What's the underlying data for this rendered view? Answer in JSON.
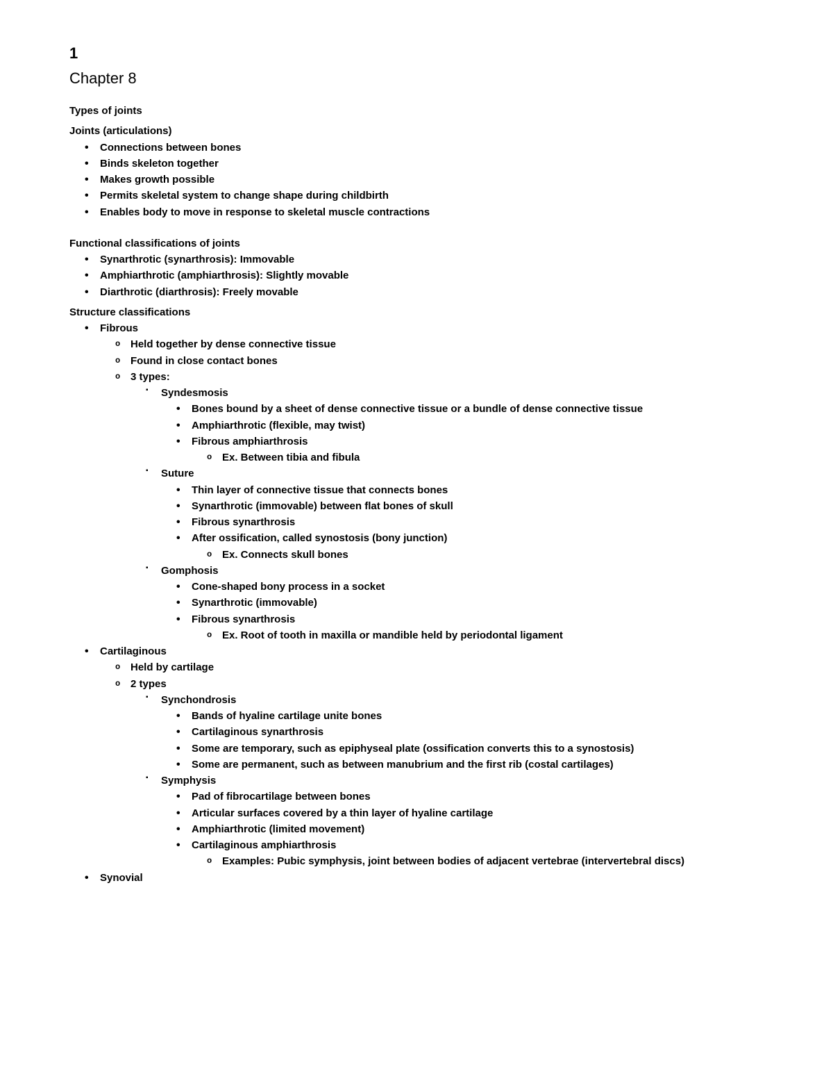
{
  "page_number": "1",
  "chapter_title": "Chapter 8",
  "h1": "Types of joints",
  "h2": "Joints (articulations)",
  "joints_items": [
    "Connections between bones",
    "Binds skeleton together",
    "Makes growth possible",
    "Permits skeletal system to change shape during childbirth",
    "Enables body to move in response to skeletal muscle contractions"
  ],
  "h3": "Functional classifications of joints",
  "functional_items": [
    "Synarthrotic (synarthrosis): Immovable",
    "Amphiarthrotic (amphiarthrosis): Slightly movable",
    "Diarthrotic (diarthrosis): Freely movable"
  ],
  "h4": "Structure classifications",
  "fibrous": {
    "title": "Fibrous",
    "sub": [
      "Held together by dense connective tissue",
      "Found in close contact bones",
      "3 types:"
    ],
    "types": {
      "syndesmosis": {
        "title": "Syndesmosis",
        "items": [
          "Bones bound by a sheet of dense connective tissue or a bundle of dense connective tissue",
          "Amphiarthrotic (flexible, may twist)",
          "Fibrous amphiarthrosis"
        ],
        "ex": "Ex. Between tibia and fibula"
      },
      "suture": {
        "title": "Suture",
        "items": [
          "Thin layer of connective tissue that connects bones",
          "Synarthrotic (immovable) between flat bones of skull",
          "Fibrous synarthrosis",
          "After ossification, called synostosis (bony junction)"
        ],
        "ex": "Ex. Connects skull bones"
      },
      "gomphosis": {
        "title": "Gomphosis",
        "items": [
          "Cone-shaped bony process in a socket",
          "Synarthrotic (immovable)",
          "Fibrous synarthrosis"
        ],
        "ex": "Ex. Root of tooth in maxilla or mandible held by periodontal ligament"
      }
    }
  },
  "cartilaginous": {
    "title": "Cartilaginous",
    "sub": [
      "Held by cartilage",
      "2 types"
    ],
    "types": {
      "synchondrosis": {
        "title": "Synchondrosis",
        "items": [
          "Bands of hyaline cartilage unite bones",
          "Cartilaginous synarthrosis",
          "Some are temporary, such as epiphyseal plate (ossification converts this to a synostosis)",
          "Some are permanent, such as between manubrium and the first rib (costal cartilages)"
        ]
      },
      "symphysis": {
        "title": "Symphysis",
        "items": [
          "Pad of fibrocartilage between bones",
          "Articular surfaces covered by a thin layer of hyaline cartilage",
          "Amphiarthrotic (limited movement)",
          "Cartilaginous amphiarthrosis"
        ],
        "ex": "Examples: Pubic symphysis, joint between bodies of adjacent vertebrae (intervertebral discs)"
      }
    }
  },
  "synovial": {
    "title": "Synovial"
  }
}
